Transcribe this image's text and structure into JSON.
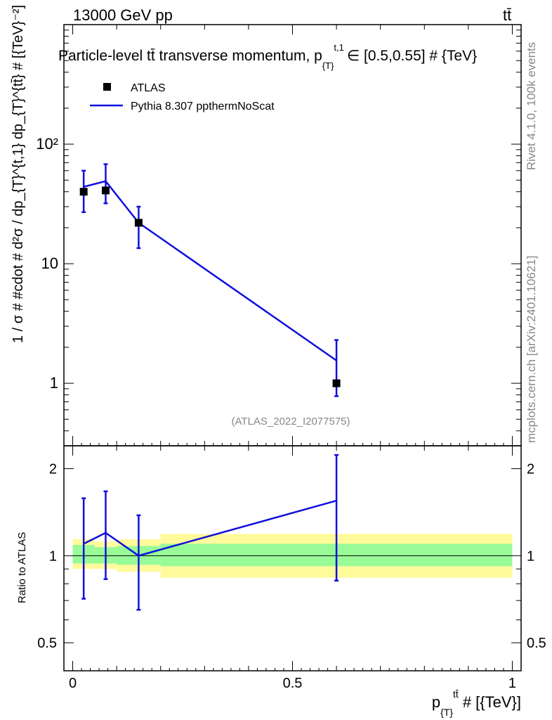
{
  "header": {
    "energy_label": "13000 GeV pp",
    "process_label": "tt̄",
    "title": "Particle-level tt̄ transverse momentum, p",
    "title_sub": "{T}",
    "title_sup": "t,1",
    "title_rest": "∈ [0.5,0.55] # {TeV}"
  },
  "side_labels": {
    "rivet": "Rivet 4.1.0,  100k events",
    "mcplots": "mcplots.cern.ch [arXiv:2401.10621]"
  },
  "watermark": "(ATLAS_2022_I2077575)",
  "legend": {
    "data_label": "ATLAS",
    "mc_label": "Pythia 8.307 ppthermNoScat"
  },
  "colors": {
    "data": "#000000",
    "mc": "#1010dd",
    "band_inner": "#98fb98",
    "band_outer": "#fffa9a"
  },
  "chart_data": [
    {
      "type": "line",
      "panel": "main",
      "ylabel": "1 / σ # #cdot # d²σ / dp_{T}^{t,1} dp_{T}^{tt̄} # [{TeV}⁻²]",
      "yscale": "log",
      "ylim": [
        0.3,
        1000
      ],
      "xlim": [
        -0.02,
        1.02
      ],
      "ytick_labels": [
        "1",
        "10",
        "10²"
      ],
      "ytick_values": [
        1,
        10,
        100
      ],
      "series": [
        {
          "name": "ATLAS",
          "style": "markers",
          "x": [
            0.025,
            0.075,
            0.15,
            0.6
          ],
          "y": [
            40,
            41,
            22,
            1.0
          ],
          "xerr": [
            0,
            0,
            0,
            0
          ],
          "yerr_low": [
            13,
            9,
            8.5,
            0.22
          ],
          "yerr_high": [
            20,
            27,
            8,
            1.3
          ]
        },
        {
          "name": "Pythia 8.307 ppthermNoScat",
          "style": "line",
          "x": [
            0.025,
            0.075,
            0.15,
            0.6
          ],
          "y": [
            44,
            49,
            22,
            1.55
          ],
          "yerr_low": [
            0,
            0,
            0,
            0
          ],
          "yerr_high": [
            0,
            0,
            0,
            0
          ]
        }
      ]
    },
    {
      "type": "line",
      "panel": "ratio",
      "ylabel": "Ratio to ATLAS",
      "yscale": "log",
      "ylim": [
        0.4,
        2.4
      ],
      "xlim": [
        -0.02,
        1.02
      ],
      "xlabel_main": "p",
      "xlabel_sub": "{T}",
      "xlabel_sup": "tt̄",
      "xlabel_rest": "# [{TeV}]",
      "xtick_labels": [
        "0",
        "0.5",
        "1"
      ],
      "xtick_values": [
        0,
        0.5,
        1
      ],
      "ytick_labels": [
        "0.5",
        "1",
        "2"
      ],
      "ytick_values": [
        0.5,
        1,
        2
      ],
      "bands": [
        {
          "x0": 0.0,
          "x1": 0.05,
          "inner": [
            0.94,
            1.09
          ],
          "outer": [
            0.9,
            1.14
          ]
        },
        {
          "x0": 0.05,
          "x1": 0.1,
          "inner": [
            0.94,
            1.07
          ],
          "outer": [
            0.9,
            1.12
          ]
        },
        {
          "x0": 0.1,
          "x1": 0.2,
          "inner": [
            0.93,
            1.08
          ],
          "outer": [
            0.88,
            1.14
          ]
        },
        {
          "x0": 0.2,
          "x1": 0.6,
          "inner": [
            0.92,
            1.1
          ],
          "outer": [
            0.84,
            1.19
          ]
        },
        {
          "x0": 0.6,
          "x1": 1.0,
          "inner": [
            0.92,
            1.1
          ],
          "outer": [
            0.84,
            1.19
          ]
        }
      ],
      "series": [
        {
          "name": "Pythia 8.307 ppthermNoScat / ATLAS",
          "x": [
            0.025,
            0.075,
            0.15,
            0.6
          ],
          "y": [
            1.1,
            1.2,
            1.0,
            1.55
          ],
          "yerr_low": [
            0.39,
            0.37,
            0.35,
            0.73
          ],
          "yerr_high": [
            0.48,
            0.47,
            0.38,
            0.68
          ]
        }
      ]
    }
  ]
}
